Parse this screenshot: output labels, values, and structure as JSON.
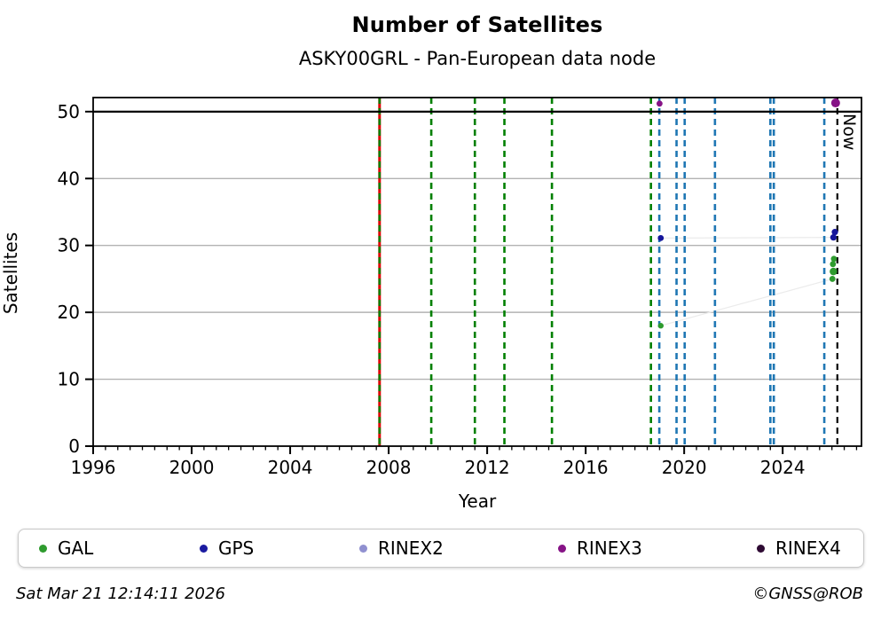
{
  "page": {
    "title": "Number of Satellites",
    "subtitle": "ASKY00GRL - Pan-European data node"
  },
  "footer": {
    "timestamp": "Sat Mar 21 12:14:11 2026",
    "credit": "©GNSS@ROB"
  },
  "legend": {
    "items": [
      {
        "label": "GAL",
        "color": "#2e9b2e"
      },
      {
        "label": "GPS",
        "color": "#1a1aa0"
      },
      {
        "label": "RINEX2",
        "color": "#9090d0"
      },
      {
        "label": "RINEX3",
        "color": "#861386"
      },
      {
        "label": "RINEX4",
        "color": "#2e0a33"
      }
    ]
  },
  "chart_data": {
    "type": "scatter",
    "title": "Number of Satellites",
    "subtitle": "ASKY00GRL - Pan-European data node",
    "xlabel": "Year",
    "ylabel": "Satellites",
    "xlim": [
      1996,
      2027.2
    ],
    "ylim": [
      0,
      52.1
    ],
    "xticks": [
      1996,
      2000,
      2004,
      2008,
      2012,
      2016,
      2020,
      2024
    ],
    "x_minor_step": 0.5,
    "yticks": [
      0,
      10,
      20,
      30,
      40,
      50
    ],
    "grid_y": [
      10,
      20,
      30,
      40
    ],
    "top_line_y": 50,
    "grid_on": true,
    "legend_position": "bottom",
    "now_marker": {
      "x": 2026.22,
      "label": "Now"
    },
    "event_lines": {
      "red_solid": [
        2007.63
      ],
      "green_dashed": [
        2007.63,
        2009.73,
        2011.5,
        2012.7,
        2014.63,
        2018.65
      ],
      "blue_dashed": [
        2018.99,
        2019.69,
        2020.02,
        2021.25,
        2023.5,
        2023.64,
        2025.69
      ]
    },
    "series": [
      {
        "name": "GAL",
        "color": "#2e9b2e",
        "points": [
          {
            "x": 2019.05,
            "y": 18,
            "r": 3.2
          },
          {
            "x": 2026.08,
            "y": 28,
            "r": 3.4
          },
          {
            "x": 2026.04,
            "y": 27.2,
            "r": 3.4
          },
          {
            "x": 2026.06,
            "y": 26.1,
            "r": 4.2
          },
          {
            "x": 2026.02,
            "y": 25,
            "r": 3.4
          }
        ],
        "trend": [
          [
            2019.05,
            18
          ],
          [
            2026.02,
            25
          ]
        ]
      },
      {
        "name": "GPS",
        "color": "#15159b",
        "points": [
          {
            "x": 2019.05,
            "y": 31.1,
            "r": 3.4
          },
          {
            "x": 2026.12,
            "y": 32,
            "r": 3.6
          },
          {
            "x": 2026.06,
            "y": 31.2,
            "r": 3.6
          }
        ],
        "trend": [
          [
            2019.05,
            31.1
          ],
          [
            2026.06,
            31.2
          ]
        ]
      },
      {
        "name": "RINEX2",
        "color": "#9090d0",
        "points": []
      },
      {
        "name": "RINEX3",
        "color": "#861386",
        "points": [
          {
            "x": 2019.0,
            "y": 51.2,
            "r": 3.4
          },
          {
            "x": 2026.15,
            "y": 51.3,
            "r": 5.0
          }
        ]
      },
      {
        "name": "RINEX4",
        "color": "#2e0a33",
        "points": []
      }
    ],
    "colors": {
      "red": "#dd0000",
      "green": "#008000",
      "blue": "#1f77b4",
      "black": "#000000",
      "grid": "#b3b3b3",
      "trend": "#ebebeb"
    }
  }
}
